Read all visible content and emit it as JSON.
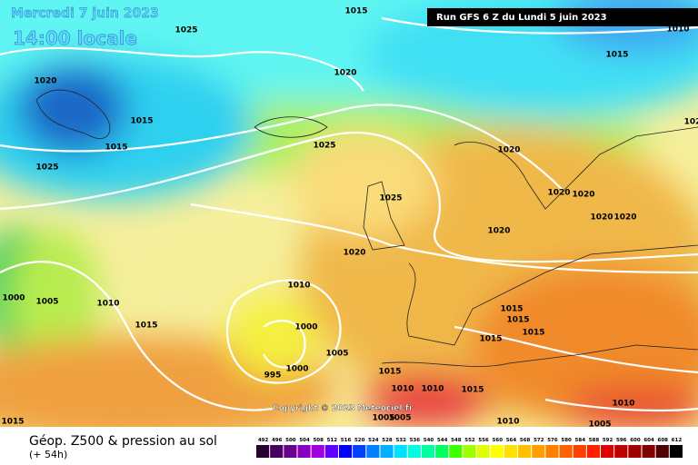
{
  "header": {
    "date": "Mercredi 7 juin 2023",
    "time": "14:00 locale",
    "run": "Run GFS 6 Z du Lundi 5 juin 2023"
  },
  "copyright": "Copyright © 2023 Meteociel.fr",
  "footer": {
    "title": "Géop. Z500 & pression au sol",
    "lead": "(+ 54h)",
    "scale": [
      492,
      496,
      500,
      504,
      508,
      512,
      516,
      520,
      524,
      528,
      532,
      536,
      540,
      544,
      548,
      552,
      556,
      560,
      564,
      568,
      572,
      576,
      580,
      584,
      588,
      592,
      596,
      600,
      604,
      608,
      612
    ]
  },
  "isobar_labels": [
    "1015",
    "1025",
    "1010",
    "1015",
    "1020",
    "1020",
    "1015",
    "1015",
    "1025",
    "1020",
    "1025",
    "1025",
    "1020",
    "1020",
    "1020",
    "1020",
    "1020",
    "1020",
    "1000",
    "1005",
    "1010",
    "1010",
    "1015",
    "1000",
    "1015",
    "1015",
    "1015",
    "1005",
    "1015",
    "1000",
    "995",
    "1015",
    "1010",
    "1010",
    "1015",
    "1010",
    "1015",
    "1005",
    "1005",
    "1010",
    "1005",
    "102"
  ]
}
